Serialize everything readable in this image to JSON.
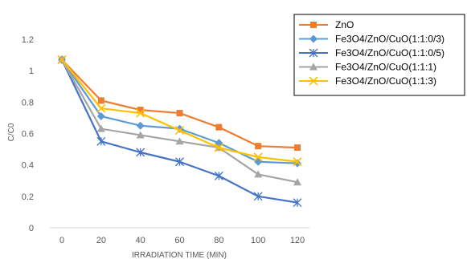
{
  "chart_data": {
    "type": "line",
    "title": "",
    "xlabel": "IRRADIATION TIME (MIN)",
    "ylabel": "C/C0",
    "x": [
      0,
      20,
      40,
      60,
      80,
      100,
      120
    ],
    "xtick_labels": [
      "0",
      "20",
      "40",
      "60",
      "80",
      "100",
      "120"
    ],
    "ylim": [
      0,
      1.2
    ],
    "yticks": [
      0,
      0.2,
      0.4,
      0.6,
      0.8,
      1,
      1.2
    ],
    "ytick_labels": [
      "0",
      "0.2",
      "0.4",
      "0.6",
      "0.8",
      "1",
      "1.2"
    ],
    "grid": false,
    "legend_position": "top-right",
    "series": [
      {
        "name": "ZnO",
        "color": "#ED7D31",
        "marker": "square",
        "values": [
          1.07,
          0.81,
          0.75,
          0.73,
          0.64,
          0.52,
          0.51
        ]
      },
      {
        "name": "Fe3O4/ZnO/CuO(1:1:0/3)",
        "color": "#5B9BD5",
        "marker": "diamond",
        "values": [
          1.07,
          0.71,
          0.65,
          0.63,
          0.54,
          0.42,
          0.41
        ]
      },
      {
        "name": "Fe3O4/ZnO/CuO(1:1:0/5)",
        "color": "#4472C4",
        "marker": "star",
        "values": [
          1.07,
          0.55,
          0.48,
          0.42,
          0.33,
          0.2,
          0.16
        ]
      },
      {
        "name": "Fe3O4/ZnO/CuO(1:1:1)",
        "color": "#A5A5A5",
        "marker": "triangle",
        "values": [
          1.07,
          0.63,
          0.59,
          0.55,
          0.51,
          0.34,
          0.29
        ]
      },
      {
        "name": "Fe3O4/ZnO/CuO(1:1:3)",
        "color": "#FFC000",
        "marker": "x",
        "values": [
          1.07,
          0.76,
          0.73,
          0.62,
          0.51,
          0.45,
          0.42
        ]
      }
    ]
  }
}
